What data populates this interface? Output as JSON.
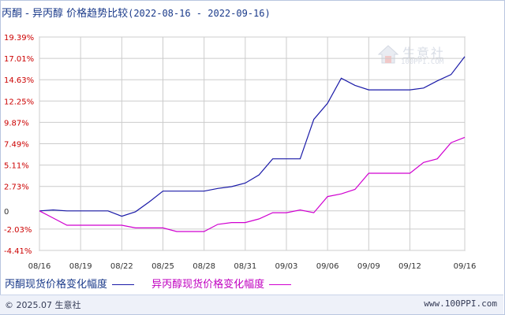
{
  "title": {
    "main": "丙酮 - 异丙醇 价格趋势比较",
    "range": "(2022-08-16 - 2022-09-16)"
  },
  "watermark": {
    "name": "生意社",
    "url": "100PPI.COM"
  },
  "footer": {
    "copyright": "© 2025.07 生意社",
    "site": "www.100PPI.com"
  },
  "colors": {
    "series1": "#1a1aa8",
    "series2": "#d000d0",
    "ytick": "#cc0000",
    "grid": "#cccccc"
  },
  "chart_data": {
    "type": "line",
    "x": [
      "08/16",
      "08/17",
      "08/18",
      "08/19",
      "08/20",
      "08/21",
      "08/22",
      "08/23",
      "08/24",
      "08/25",
      "08/26",
      "08/27",
      "08/28",
      "08/29",
      "08/30",
      "08/31",
      "09/01",
      "09/02",
      "09/03",
      "09/04",
      "09/05",
      "09/06",
      "09/07",
      "09/08",
      "09/09",
      "09/10",
      "09/11",
      "09/12",
      "09/13",
      "09/14",
      "09/15",
      "09/16"
    ],
    "xticks": [
      "08/16",
      "08/19",
      "08/22",
      "08/25",
      "08/28",
      "08/31",
      "09/03",
      "09/06",
      "09/09",
      "09/12",
      "09/16"
    ],
    "yticks": [
      "19.39%",
      "17.01%",
      "14.63%",
      "12.25%",
      "9.87%",
      "7.49%",
      "5.11%",
      "2.73%",
      "0",
      "-2.03%",
      "-4.41%"
    ],
    "ylim": [
      -4.41,
      19.39
    ],
    "series": [
      {
        "name": "丙酮现货价格变化幅度",
        "values": [
          0,
          0.1,
          0,
          0,
          0,
          0,
          -0.6,
          -0.1,
          1.0,
          2.2,
          2.2,
          2.2,
          2.2,
          2.5,
          2.7,
          3.1,
          4.0,
          5.8,
          5.8,
          5.8,
          10.2,
          12.0,
          14.8,
          14.0,
          13.5,
          13.5,
          13.5,
          13.5,
          13.7,
          14.5,
          15.2,
          17.2
        ]
      },
      {
        "name": "异丙醇现货价格变化幅度",
        "values": [
          0,
          -0.8,
          -1.6,
          -1.6,
          -1.6,
          -1.6,
          -1.6,
          -1.9,
          -1.9,
          -1.9,
          -2.3,
          -2.3,
          -2.3,
          -1.5,
          -1.3,
          -1.3,
          -0.9,
          -0.2,
          -0.2,
          0.1,
          -0.2,
          1.6,
          1.9,
          2.4,
          4.2,
          4.2,
          4.2,
          4.2,
          5.4,
          5.8,
          7.6,
          8.2
        ]
      }
    ],
    "grid": true,
    "legend": "bottom"
  }
}
